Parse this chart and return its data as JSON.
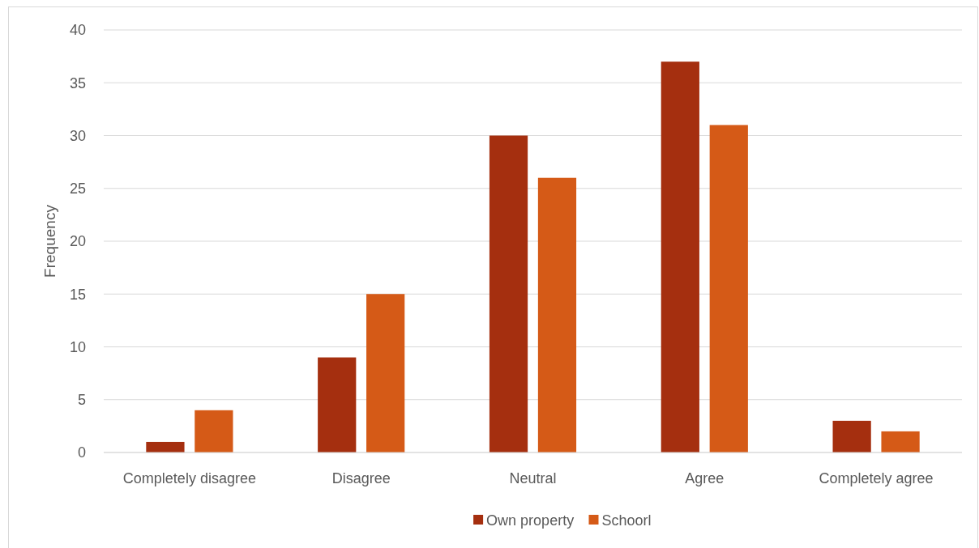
{
  "chart_data": {
    "type": "bar",
    "ylabel": "Frequency",
    "categories": [
      "Completely disagree",
      "Disagree",
      "Neutral",
      "Agree",
      "Completely agree"
    ],
    "series": [
      {
        "name": "Own property",
        "color": "#a52f0f",
        "values": [
          1,
          9,
          30,
          37,
          3
        ]
      },
      {
        "name": "Schoorl",
        "color": "#d55a17",
        "values": [
          4,
          15,
          26,
          31,
          2
        ]
      }
    ],
    "ylim": [
      0,
      40
    ],
    "yticks": [
      0,
      5,
      10,
      15,
      20,
      25,
      30,
      35,
      40
    ],
    "grid": "y",
    "legend": "bottom"
  }
}
